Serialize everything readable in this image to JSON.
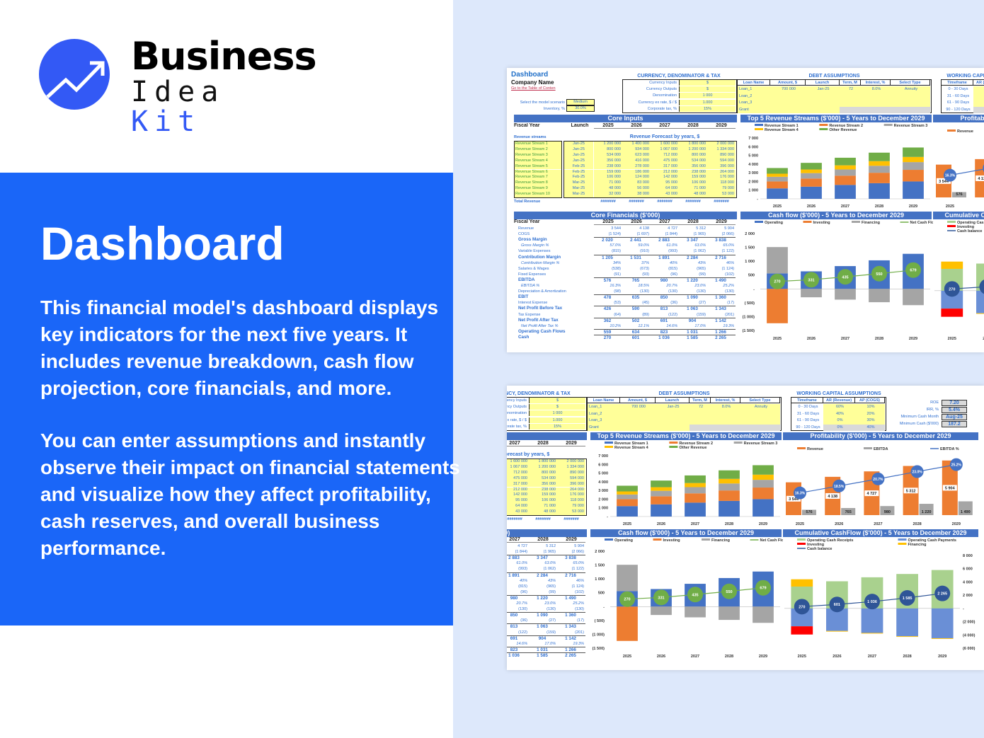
{
  "brand": {
    "line1": "Business",
    "line2a": "Idea",
    "line2b": "Kit",
    "color": "#3359f5"
  },
  "hero": {
    "title": "Dashboard",
    "p1": "This financial model's dashboard displays key indicators for the next five years. It includes revenue breakdown, cash flow projection, core financials, and more.",
    "p2": "You can enter assumptions and instantly observe their impact on financial statements and visualize how they affect profitability, cash reserves, and overall business performance.",
    "bg": "#1a66f8"
  },
  "sheet": {
    "title": "Dashboard",
    "company": "Company Name",
    "toc_link": "Go to the Table of Conten",
    "scenario_label": "Select the model scenario",
    "scenario": "Medium",
    "inventory_label": "Inventory, %",
    "inventory": "30.0%",
    "currency": {
      "title": "CURRENCY, DENOMINATOR & TAX",
      "labels": [
        "Currency Inputs",
        "Currency Outputs",
        "Denomination",
        "Currency ex rate, $ / $",
        "Corporate tax, %"
      ],
      "values": [
        "$",
        "$",
        "1 000",
        "1.000",
        "15%"
      ]
    },
    "debt": {
      "title": "DEBT ASSUMPTIONS",
      "headers": [
        "Loan Name",
        "Amount, $",
        "Launch",
        "Term, M",
        "Interest, %",
        "Select Type"
      ],
      "rows": [
        [
          "Loan_1",
          "700 000",
          "Jan-25",
          "72",
          "8.0%",
          "Annuity"
        ],
        [
          "Loan_2",
          "",
          "",
          "",
          "",
          ""
        ],
        [
          "Loan_3",
          "",
          "",
          "",
          "",
          ""
        ],
        [
          "Grant",
          "",
          "",
          "",
          "",
          ""
        ]
      ]
    },
    "wc": {
      "title": "WORKING CAPITAL ASSUMPTIONS",
      "headers": [
        "Timeframe",
        "AR (Revenue)",
        "AP (COGS)"
      ],
      "rows": [
        [
          "0 - 30 Days",
          "60%",
          "10%"
        ],
        [
          "31 - 60 Days",
          "40%",
          "20%"
        ],
        [
          "61 - 90 Days",
          "0%",
          "30%"
        ],
        [
          "90 - 120 Days",
          "0%",
          "40%"
        ]
      ]
    },
    "kpis": [
      {
        "label": "ROE",
        "value": "7.20"
      },
      {
        "label": "IRR, %",
        "value": "5.4%"
      },
      {
        "label": "Minimum Cash Month",
        "value": "Aug-25"
      },
      {
        "label": "Minimum Cash ($'000)",
        "value": "187.2"
      }
    ],
    "core_inputs": {
      "title": "Core Inputs",
      "fiscal_year": "Fiscal Year",
      "launch": "Launch",
      "years": [
        "2025",
        "2026",
        "2027",
        "2028",
        "2029"
      ],
      "streams_label": "Revenue streams",
      "forecast_title": "Revenue Forecast by years, $",
      "streams": [
        [
          "Revenue Stream 1",
          "Jan-25",
          "1 200 000",
          "1 400 000",
          "1 600 000",
          "1 800 000",
          "2 000 000"
        ],
        [
          "Revenue Stream 2",
          "Jan-25",
          "800 000",
          "934 000",
          "1 067 000",
          "1 200 000",
          "1 334 000"
        ],
        [
          "Revenue Stream 3",
          "Jan-25",
          "534 000",
          "623 000",
          "712 000",
          "800 000",
          "890 000"
        ],
        [
          "Revenue Stream 4",
          "Jan-25",
          "356 000",
          "416 000",
          "475 000",
          "534 000",
          "594 000"
        ],
        [
          "Revenue Stream 5",
          "Feb-25",
          "238 000",
          "278 000",
          "317 000",
          "356 000",
          "396 000"
        ],
        [
          "Revenue Stream 6",
          "Feb-25",
          "159 000",
          "186 000",
          "212 000",
          "238 000",
          "264 000"
        ],
        [
          "Revenue Stream 7",
          "Feb-25",
          "106 000",
          "124 000",
          "142 000",
          "159 000",
          "176 000"
        ],
        [
          "Revenue Stream 8",
          "Mar-25",
          "71 000",
          "83 000",
          "95 000",
          "106 000",
          "118 000"
        ],
        [
          "Revenue Stream 9",
          "Mar-25",
          "48 000",
          "56 000",
          "64 000",
          "71 000",
          "79 000"
        ],
        [
          "Revenue Stream 10",
          "Mar-25",
          "32 000",
          "38 000",
          "43 000",
          "48 000",
          "53 000"
        ]
      ],
      "total_label": "Total Revenue",
      "totals": [
        "#######",
        "#######",
        "#######",
        "#######",
        "#######"
      ]
    },
    "financials": {
      "title": "Core Financials ($'000)",
      "fiscal_year": "Fiscal Year",
      "rows": [
        {
          "label": "Revenue",
          "v": [
            "3 544",
            "4 138",
            "4 727",
            "5 312",
            "5 904"
          ],
          "s": "n"
        },
        {
          "label": "COGS",
          "v": [
            "(1 524)",
            "(1 697)",
            "(1 844)",
            "(1 965)",
            "(2 066)"
          ],
          "s": "n"
        },
        {
          "label": "Gross Margin",
          "v": [
            "2 020",
            "2 441",
            "2 883",
            "3 347",
            "3 838"
          ],
          "s": "b"
        },
        {
          "label": "Gross Margin %",
          "v": [
            "57.0%",
            "59.0%",
            "61.0%",
            "63.0%",
            "65.0%"
          ],
          "s": "i"
        },
        {
          "label": "Variable Expenses",
          "v": [
            "(815)",
            "(910)",
            "(993)",
            "(1 062)",
            "(1 122)"
          ],
          "s": "n"
        },
        {
          "label": "Contribution Margin",
          "v": [
            "1 205",
            "1 531",
            "1 891",
            "2 284",
            "2 716"
          ],
          "s": "b"
        },
        {
          "label": "Contribution Margin %",
          "v": [
            "34%",
            "37%",
            "40%",
            "43%",
            "46%"
          ],
          "s": "i"
        },
        {
          "label": "Salaries & Wages",
          "v": [
            "(538)",
            "(673)",
            "(815)",
            "(965)",
            "(1 124)"
          ],
          "s": "n"
        },
        {
          "label": "Fixed Expenses",
          "v": [
            "(91)",
            "(93)",
            "(96)",
            "(99)",
            "(102)"
          ],
          "s": "n"
        },
        {
          "label": "EBITDA",
          "v": [
            "576",
            "765",
            "980",
            "1 220",
            "1 490"
          ],
          "s": "b"
        },
        {
          "label": "EBITDA %",
          "v": [
            "16.3%",
            "18.5%",
            "20.7%",
            "23.0%",
            "25.2%"
          ],
          "s": "i"
        },
        {
          "label": "Depreciation & Amortization",
          "v": [
            "(98)",
            "(130)",
            "(130)",
            "(130)",
            "(130)"
          ],
          "s": "n"
        },
        {
          "label": "EBIT",
          "v": [
            "478",
            "635",
            "850",
            "1 090",
            "1 360"
          ],
          "s": "b"
        },
        {
          "label": "Interest Expense",
          "v": [
            "(53)",
            "(45)",
            "(36)",
            "(27)",
            "(17)"
          ],
          "s": "n"
        },
        {
          "label": "Net Profit Before Tax",
          "v": [
            "426",
            "590",
            "813",
            "1 063",
            "1 343"
          ],
          "s": "b"
        },
        {
          "label": "Tax Expense",
          "v": [
            "(64)",
            "(89)",
            "(122)",
            "(159)",
            "(201)"
          ],
          "s": "n"
        },
        {
          "label": "Net Profit After Tax",
          "v": [
            "362",
            "502",
            "691",
            "904",
            "1 142"
          ],
          "s": "b"
        },
        {
          "label": "Net Profit After Tax %",
          "v": [
            "10.2%",
            "12.1%",
            "14.6%",
            "17.0%",
            "19.3%"
          ],
          "s": "i"
        },
        {
          "label": "Operating Cash Flows",
          "v": [
            "559",
            "634",
            "823",
            "1 031",
            "1 266"
          ],
          "s": "b"
        },
        {
          "label": "Cash",
          "v": [
            "270",
            "601",
            "1 036",
            "1 585",
            "2 265"
          ],
          "s": "b"
        }
      ]
    },
    "charts": {
      "top5": {
        "title": "Top 5 Revenue Streams ($'000) - 5 Years to December 2029",
        "type": "bar",
        "stacked": true,
        "categories": [
          "2025",
          "2026",
          "2027",
          "2028",
          "2029"
        ],
        "ylim": [
          0,
          7000
        ],
        "ticks": [
          "-",
          "1 000",
          "2 000",
          "3 000",
          "4 000",
          "5 000",
          "6 000",
          "7 000"
        ],
        "series": [
          {
            "name": "Revenue Stream 1",
            "color": "#4472c4",
            "values": [
              1200,
              1400,
              1600,
              1800,
              2000
            ]
          },
          {
            "name": "Revenue Stream 2",
            "color": "#ed7d31",
            "values": [
              800,
              934,
              1067,
              1200,
              1334
            ]
          },
          {
            "name": "Revenue Stream 3",
            "color": "#a5a5a5",
            "values": [
              534,
              623,
              712,
              800,
              890
            ]
          },
          {
            "name": "Revenue Stream 4",
            "color": "#ffc000",
            "values": [
              356,
              416,
              475,
              534,
              594
            ]
          },
          {
            "name": "Other Revenue",
            "color": "#70ad47",
            "values": [
              654,
              765,
              873,
              978,
              1086
            ]
          }
        ]
      },
      "profit": {
        "title": "Profitability ($'000) - 5 Years to December 2029",
        "categories": [
          "2025",
          "2026",
          "2027",
          "2028",
          "2029"
        ],
        "series": [
          {
            "name": "Revenue",
            "color": "#ed7d31",
            "values": [
              3544,
              4138,
              4727,
              5312,
              5904
            ],
            "labels": [
              "3 544",
              "4 138",
              "4 727",
              "5 312",
              "5 904"
            ]
          },
          {
            "name": "EBITDA",
            "color": "#a5a5a5",
            "values": [
              576,
              765,
              980,
              1220,
              1490
            ],
            "labels": [
              "576",
              "765",
              "980",
              "1 220",
              "1 490"
            ]
          },
          {
            "name": "EBITDA %",
            "color": "#4472c4",
            "values": [
              16.3,
              18.5,
              20.7,
              23.0,
              25.2
            ],
            "labels": [
              "16.3%",
              "18.5%",
              "20.7%",
              "23.0%",
              "25.2%"
            ]
          }
        ]
      },
      "cashflow": {
        "title": "Cash flow ($'000) - 5 Years to December 2029",
        "categories": [
          "2025",
          "2026",
          "2027",
          "2028",
          "2029"
        ],
        "ylim": [
          -1500,
          2000
        ],
        "ticks": [
          "(1 500)",
          "(1 000)",
          "( 500)",
          "-",
          "500",
          "1 000",
          "1 500",
          "2 000"
        ],
        "series": [
          {
            "name": "Operating",
            "color": "#4472c4",
            "values": [
              559,
              634,
              823,
              1031,
              1266
            ]
          },
          {
            "name": "Investing",
            "color": "#ed7d31",
            "values": [
              -1240,
              0,
              0,
              0,
              0
            ]
          },
          {
            "name": "Financing",
            "color": "#a5a5a5",
            "values": [
              951,
              -303,
              -388,
              -481,
              -587
            ]
          },
          {
            "name": "Net Cash Flow",
            "color": "#70ad47",
            "values": [
              270,
              331,
              435,
              550,
              679
            ],
            "labels": [
              "270",
              "331",
              "435",
              "550",
              "679"
            ]
          }
        ]
      },
      "cumulative": {
        "title": "Cumulative CashFlow ($'000) - 5 Years to December 2029",
        "categories": [
          "2025",
          "2026",
          "2027",
          "2028",
          "2029"
        ],
        "ylim": [
          -6000,
          8000
        ],
        "ticks": [
          "(6 000)",
          "(4 000)",
          "(2 000)",
          "-",
          "2 000",
          "4 000",
          "6 000",
          "8 000"
        ],
        "series": [
          {
            "name": "Operating Cash Receipts",
            "color": "#a9d18e",
            "values": [
              3300,
              4100,
              4700,
              5200,
              5800
            ]
          },
          {
            "name": "Operating Cash Payments",
            "color": "#6a8fd6",
            "values": [
              -2700,
              -3400,
              -3700,
              -4200,
              -4500
            ]
          },
          {
            "name": "Investing",
            "color": "#ff0000",
            "values": [
              -1240,
              0,
              0,
              0,
              0
            ]
          },
          {
            "name": "Financing",
            "color": "#ffc000",
            "values": [
              1100,
              -100,
              -100,
              -100,
              -100
            ]
          },
          {
            "name": "Cash balance",
            "color": "#2f5597",
            "values": [
              270,
              601,
              1036,
              1585,
              2265
            ],
            "labels": [
              "270",
              "601",
              "1 036",
              "1 585",
              "2 265"
            ]
          }
        ]
      }
    }
  }
}
